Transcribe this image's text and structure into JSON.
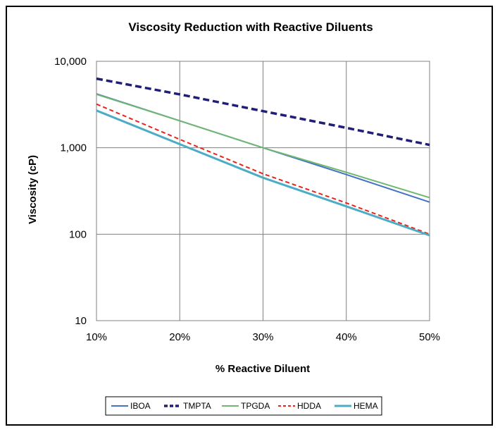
{
  "chart_data": {
    "type": "line",
    "title": "Viscosity Reduction with Reactive Diluents",
    "xlabel": "% Reactive Diluent",
    "ylabel": "Viscosity  (cP)",
    "x": [
      10,
      20,
      30,
      40,
      50
    ],
    "x_tick_labels": [
      "10%",
      "20%",
      "30%",
      "40%",
      "50%"
    ],
    "xlim": [
      10,
      50
    ],
    "y_scale": "log",
    "ylim": [
      10,
      10000
    ],
    "y_ticks": [
      10,
      100,
      1000,
      10000
    ],
    "y_tick_labels": [
      "10",
      "100",
      "1,000",
      "10,000"
    ],
    "grid": true,
    "legend_position": "bottom",
    "series": [
      {
        "name": "IBOA",
        "color": "#4472C4",
        "dash": "solid",
        "width": 2.0,
        "values": [
          4200,
          2050,
          1000,
          490,
          235
        ]
      },
      {
        "name": "TMPTA",
        "color": "#1F1F7A",
        "dash": "dashed",
        "width": 3.5,
        "values": [
          6300,
          4150,
          2650,
          1700,
          1080
        ]
      },
      {
        "name": "TPGDA",
        "color": "#70B870",
        "dash": "solid",
        "width": 2.0,
        "values": [
          4150,
          2050,
          1000,
          520,
          265
        ]
      },
      {
        "name": "HDDA",
        "color": "#E8241C",
        "dash": "dashed",
        "width": 2.0,
        "values": [
          3200,
          1250,
          500,
          230,
          100
        ]
      },
      {
        "name": "HEMA",
        "color": "#4BACC6",
        "dash": "solid",
        "width": 3.0,
        "values": [
          2700,
          1100,
          450,
          210,
          97
        ]
      }
    ]
  }
}
